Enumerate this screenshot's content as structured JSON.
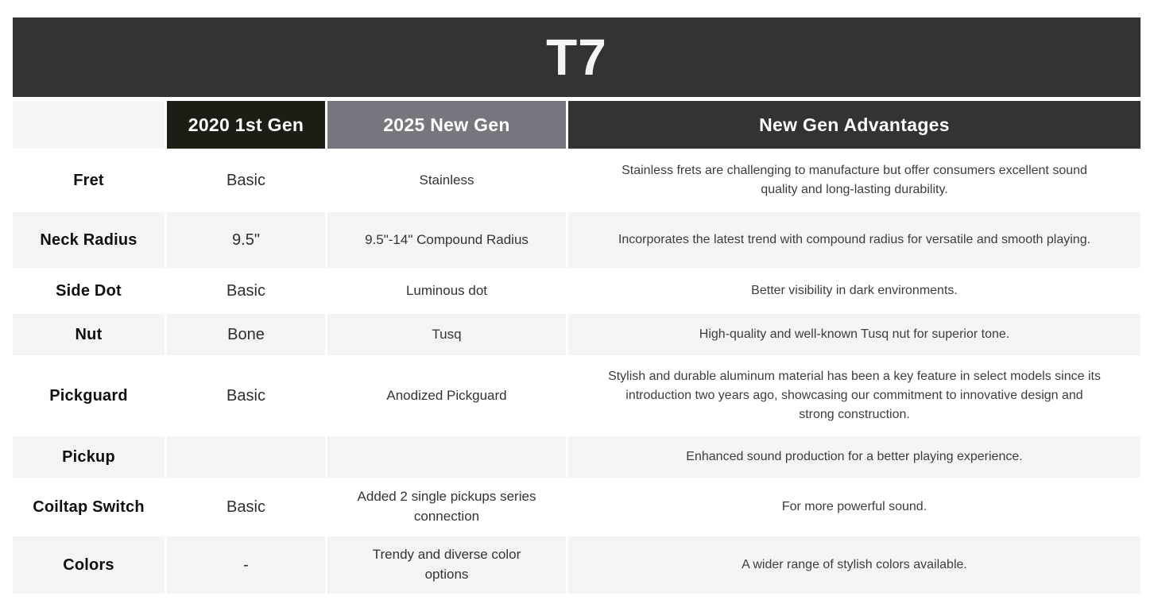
{
  "page": {
    "title": "T7"
  },
  "colors": {
    "title_bar": "#333336",
    "header_2020_bg": "#1d1d15",
    "header_2025_bg": "#76767e",
    "header_advantages_bg": "#333336",
    "row_alternate_bg": "#f3f4f6",
    "row_plain_bg": "#ffffff",
    "header_text": "#ffffff",
    "body_text": "#3d3d3d"
  },
  "table": {
    "columns": {
      "feature": "",
      "gen2020": "2020 1st Gen",
      "gen2025": "2025 New Gen",
      "advantages": "New Gen Advantages"
    },
    "rows": [
      {
        "feature": "Fret",
        "gen2020": "Basic",
        "gen2025": "Stainless",
        "advantage": "Stainless frets are challenging to manufacture but offer consumers excellent sound quality and long-lasting durability."
      },
      {
        "feature": "Neck Radius",
        "gen2020": "9.5\"",
        "gen2025": "9.5\"-14\" Compound Radius",
        "advantage": "Incorporates the latest trend with compound radius for versatile and smooth playing."
      },
      {
        "feature": "Side Dot",
        "gen2020": "Basic",
        "gen2025": "Luminous dot",
        "advantage": "Better visibility in dark environments."
      },
      {
        "feature": "Nut",
        "gen2020": "Bone",
        "gen2025": "Tusq",
        "advantage": "High-quality and well-known Tusq nut for superior tone."
      },
      {
        "feature": "Pickguard",
        "gen2020": "Basic",
        "gen2025": "Anodized Pickguard",
        "advantage": "Stylish and durable aluminum material has been a key feature in select models since its introduction two years ago, showcasing our commitment to innovative design and strong construction."
      },
      {
        "feature": "Pickup",
        "gen2020": "",
        "gen2025": "",
        "advantage": "Enhanced sound production for a better playing experience."
      },
      {
        "feature": "Coiltap Switch",
        "gen2020": "Basic",
        "gen2025": "Added 2 single pickups series connection",
        "advantage": "For more powerful sound."
      },
      {
        "feature": "Colors",
        "gen2020": "-",
        "gen2025": "Trendy and diverse color options",
        "advantage": "A wider range of stylish colors available."
      }
    ]
  }
}
